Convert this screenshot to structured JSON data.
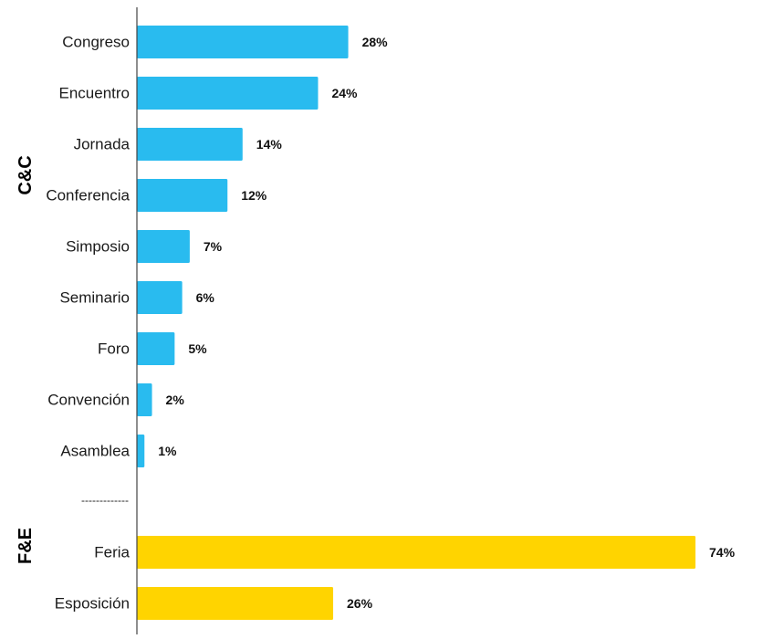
{
  "chart_data": {
    "type": "bar",
    "orientation": "horizontal",
    "title": "",
    "xlabel": "",
    "ylabel": "",
    "xlim": [
      0,
      74
    ],
    "grid": false,
    "legend": "none",
    "value_suffix": "%",
    "groups": [
      {
        "name": "C&C",
        "color": "#29BBEF",
        "categories": [
          "Congreso",
          "Encuentro",
          "Jornada",
          "Conferencia",
          "Simposio",
          "Seminario",
          "Foro",
          "Convención",
          "Asamblea"
        ],
        "values": [
          28,
          24,
          14,
          12,
          7,
          6,
          5,
          2,
          1
        ]
      },
      {
        "name": "F&E",
        "color": "#FFD400",
        "categories": [
          "Feria",
          "Esposición"
        ],
        "values": [
          74,
          26
        ]
      }
    ],
    "separator_text": "-------------"
  }
}
